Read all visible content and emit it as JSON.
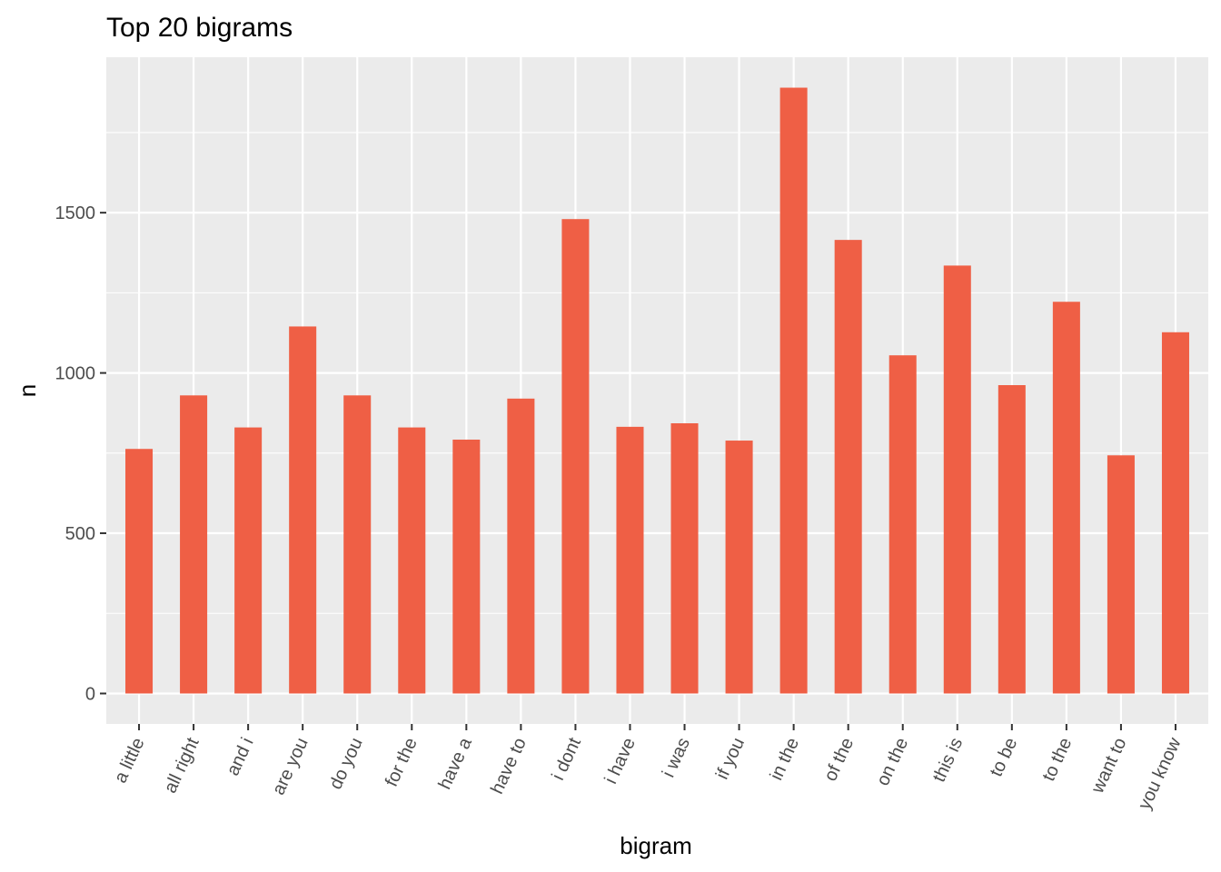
{
  "chart_data": {
    "type": "bar",
    "title": "Top 20 bigrams",
    "xlabel": "bigram",
    "ylabel": "n",
    "categories": [
      "a little",
      "all right",
      "and i",
      "are you",
      "do you",
      "for the",
      "have a",
      "have to",
      "i dont",
      "i have",
      "i was",
      "if you",
      "in the",
      "of the",
      "on the",
      "this is",
      "to be",
      "to the",
      "want to",
      "you know"
    ],
    "values": [
      763,
      930,
      830,
      1145,
      930,
      830,
      792,
      920,
      1480,
      832,
      843,
      789,
      1890,
      1415,
      1055,
      1335,
      962,
      1222,
      743,
      1127
    ],
    "yticks": [
      0,
      500,
      1000,
      1500
    ],
    "ylim": [
      -95,
      1985
    ],
    "grid": true,
    "legend": "none",
    "bar_color": "#EF5F45",
    "panel_background": "#EBEBEB",
    "gridline_color": "#FFFFFF"
  }
}
